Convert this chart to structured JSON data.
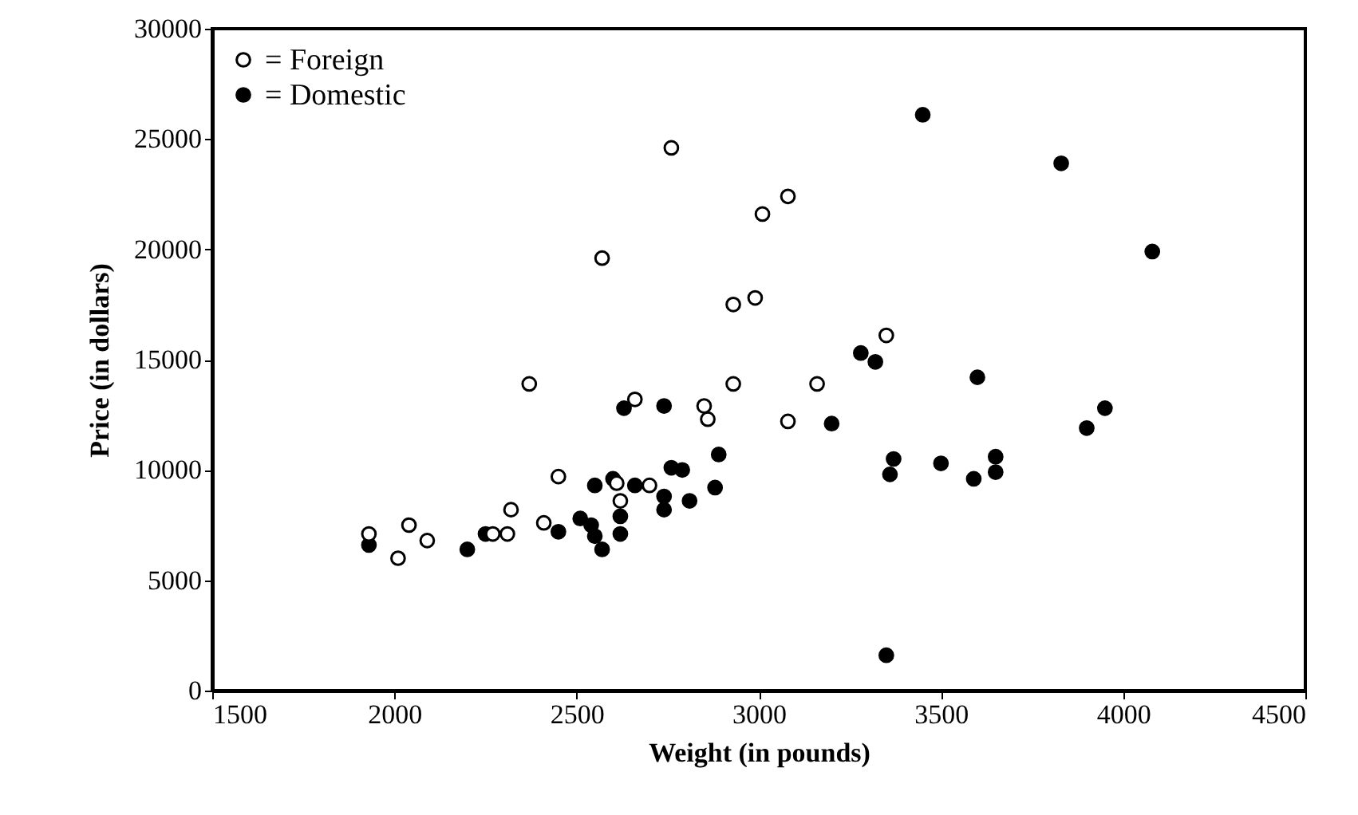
{
  "chart_data": {
    "type": "scatter",
    "xlabel": "Weight (in pounds)",
    "ylabel": "Price (in dollars)",
    "xlim": [
      1500,
      4500
    ],
    "xticks": [
      1500,
      2000,
      2500,
      3000,
      3500,
      4000,
      4500
    ],
    "ylim": [
      0,
      30000
    ],
    "yticks": [
      0,
      5000,
      10000,
      15000,
      20000,
      25000,
      30000
    ],
    "grid": false,
    "legend": "top left",
    "marker": "circle",
    "series": [
      {
        "name": "= Foreign",
        "color": "#ffffff",
        "x": [
          1930,
          2010,
          2040,
          2090,
          2270,
          2310,
          2320,
          2370,
          2410,
          2450,
          2570,
          2610,
          2620,
          2660,
          2700,
          2760,
          2850,
          2860,
          2930,
          2930,
          2990,
          3010,
          3080,
          3080,
          3160,
          3350
        ],
        "values": [
          7100,
          6000,
          7500,
          6800,
          7100,
          7100,
          8200,
          13900,
          7600,
          9700,
          19600,
          9400,
          8600,
          13200,
          9300,
          24600,
          12900,
          12300,
          17500,
          13900,
          17800,
          21600,
          22400,
          12200,
          13900,
          16100
        ]
      },
      {
        "name": "= Domestic",
        "color": "#000000",
        "x": [
          1930,
          2200,
          2250,
          2450,
          2510,
          2550,
          2540,
          2550,
          2570,
          2600,
          2620,
          2620,
          2630,
          2660,
          2740,
          2740,
          2740,
          2760,
          2790,
          2810,
          2880,
          2890,
          3280,
          3320,
          3200,
          3350,
          3360,
          3370,
          3450,
          3500,
          3590,
          3600,
          3650,
          3650,
          3830,
          3900,
          3950,
          4080
        ],
        "values": [
          6600,
          6400,
          7100,
          7200,
          7800,
          9300,
          7500,
          7000,
          6400,
          9600,
          7900,
          7100,
          12800,
          9300,
          12900,
          8800,
          8200,
          10100,
          10000,
          8600,
          9200,
          10700,
          15300,
          14900,
          12100,
          1600,
          9800,
          10500,
          26100,
          10300,
          9600,
          14200,
          10600,
          9900,
          23900,
          11900,
          12800,
          19900
        ]
      }
    ]
  }
}
